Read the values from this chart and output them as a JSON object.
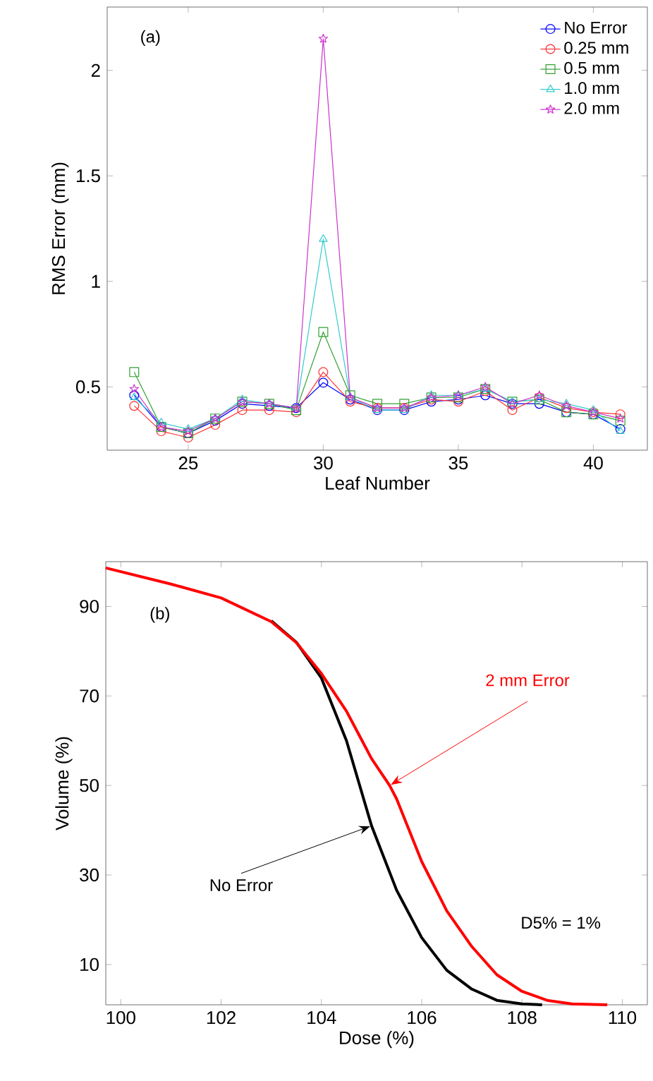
{
  "chart_data": [
    {
      "type": "line",
      "annotations": [
        "(a)"
      ],
      "xlabel": "Leaf Number",
      "ylabel": "RMS Error (mm)",
      "x": [
        23,
        24,
        25,
        26,
        27,
        28,
        29,
        30,
        31,
        32,
        33,
        34,
        35,
        36,
        37,
        38,
        39,
        40,
        41
      ],
      "xlim": [
        22,
        42
      ],
      "ylim": [
        0.2,
        2.3
      ],
      "xticks": [
        25,
        30,
        35,
        40
      ],
      "yticks": [
        0.5,
        1,
        1.5,
        2
      ],
      "legend": "top right",
      "line_style": "solid",
      "series": [
        {
          "name": "No Error",
          "color": "#0000ff",
          "marker": "circle",
          "values": [
            0.46,
            0.31,
            0.28,
            0.34,
            0.42,
            0.41,
            0.4,
            0.52,
            0.44,
            0.39,
            0.39,
            0.43,
            0.44,
            0.46,
            0.42,
            0.42,
            0.38,
            0.37,
            0.3
          ]
        },
        {
          "name": "0.25 mm",
          "color": "#ff3333",
          "marker": "circle",
          "values": [
            0.41,
            0.29,
            0.26,
            0.32,
            0.39,
            0.39,
            0.38,
            0.57,
            0.43,
            0.4,
            0.4,
            0.44,
            0.43,
            0.48,
            0.39,
            0.45,
            0.4,
            0.38,
            0.37
          ]
        },
        {
          "name": "0.5 mm",
          "color": "#33a033",
          "marker": "square",
          "values": [
            0.57,
            0.31,
            0.28,
            0.35,
            0.43,
            0.42,
            0.39,
            0.76,
            0.46,
            0.42,
            0.42,
            0.45,
            0.45,
            0.49,
            0.43,
            0.44,
            0.38,
            0.37,
            0.34
          ]
        },
        {
          "name": "1.0 mm",
          "color": "#33cccc",
          "marker": "triangle",
          "values": [
            0.45,
            0.33,
            0.3,
            0.35,
            0.44,
            0.42,
            0.4,
            1.2,
            0.45,
            0.39,
            0.39,
            0.46,
            0.46,
            0.49,
            0.43,
            0.44,
            0.42,
            0.39,
            0.29
          ]
        },
        {
          "name": "2.0 mm",
          "color": "#cc33cc",
          "marker": "star",
          "values": [
            0.49,
            0.31,
            0.29,
            0.35,
            0.43,
            0.42,
            0.4,
            2.15,
            0.45,
            0.4,
            0.4,
            0.45,
            0.46,
            0.5,
            0.42,
            0.46,
            0.41,
            0.38,
            0.35
          ]
        }
      ]
    },
    {
      "type": "line",
      "annotations": [
        "(b)",
        "D5% = 1%"
      ],
      "xlabel": "Dose (%)",
      "ylabel": "Volume (%)",
      "xlim": [
        99.7,
        110.5
      ],
      "ylim": [
        1,
        100
      ],
      "xticks": [
        100,
        102,
        104,
        106,
        108,
        110
      ],
      "yticks": [
        10,
        30,
        50,
        70,
        90
      ],
      "marker": "none",
      "line_style": "solid",
      "series": [
        {
          "name": "No Error",
          "color": "#000000",
          "x": [
            103,
            103.5,
            104,
            104.5,
            105,
            105.5,
            106,
            106.5,
            107,
            107.5,
            108,
            108.4
          ],
          "values": [
            86.8,
            82,
            74,
            60,
            41,
            26.6,
            16,
            8.7,
            4.5,
            2,
            1.2,
            1
          ]
        },
        {
          "name": "2 mm Error",
          "color": "#ff0000",
          "x": [
            99.7,
            101,
            102,
            103,
            103.5,
            104,
            104.5,
            105,
            105.36,
            105.5,
            106,
            106.5,
            107,
            107.5,
            108,
            108.5,
            109,
            109.7
          ],
          "values": [
            98.6,
            95,
            91.9,
            86.6,
            81.9,
            75,
            66.6,
            56,
            50,
            47,
            33,
            22,
            14,
            7.7,
            4,
            2,
            1.2,
            1
          ]
        }
      ]
    }
  ]
}
